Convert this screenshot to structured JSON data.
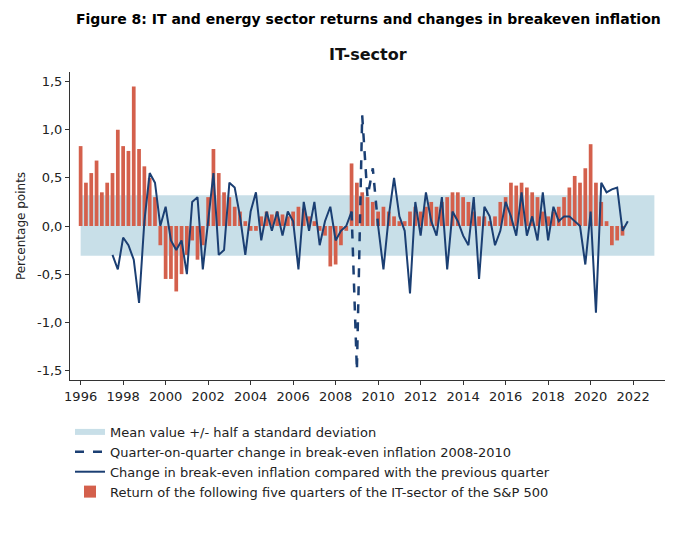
{
  "chart_data": {
    "type": "bar",
    "title": "Figure 8: IT and energy sector returns and changes in breakeven inflation",
    "subtitle": "IT-sector",
    "y_label": "Percentage points",
    "xlim": [
      1995.5,
      2023.5
    ],
    "xticks": [
      1996,
      1998,
      2000,
      2002,
      2004,
      2006,
      2008,
      2010,
      2012,
      2014,
      2016,
      2018,
      2020,
      2022
    ],
    "ylim": [
      -1.6,
      1.6
    ],
    "yticks": [
      {
        "value": -1.5,
        "label": "-1,5"
      },
      {
        "value": -1.0,
        "label": "-1,0"
      },
      {
        "value": -0.5,
        "label": "-0,5"
      },
      {
        "value": 0,
        "label": "0,0"
      },
      {
        "value": 0.5,
        "label": "0,5"
      },
      {
        "value": 1.0,
        "label": "1,0"
      },
      {
        "value": 1.5,
        "label": "1,5"
      }
    ],
    "grid": false,
    "legend": "bottom left",
    "series": [
      {
        "name": "Mean value +/- half a standard deviation",
        "type": "band",
        "color": "#c8dfe8",
        "x": [
          1996,
          2023
        ],
        "lower": -0.31,
        "upper": 0.32
      },
      {
        "name": "Quarter-on-quarter change in break-even inflation 2008-2010",
        "type": "line",
        "line_style": "dashed",
        "color": "#1b3f73",
        "x": [
          2008.75,
          2009,
          2009.25,
          2009.5,
          2009.75,
          2010
        ],
        "values": [
          0.15,
          -1.5,
          1.15,
          0.3,
          0.6,
          0.0
        ]
      },
      {
        "name": "Change in break-even inflation compared with the previous quarter",
        "type": "line",
        "line_style": "solid",
        "color": "#1b3f73",
        "x": [
          1997.5,
          1997.75,
          1998,
          1998.25,
          1998.5,
          1998.75,
          1999,
          1999.25,
          1999.5,
          1999.75,
          2000,
          2000.25,
          2000.5,
          2000.75,
          2001,
          2001.25,
          2001.5,
          2001.75,
          2002,
          2002.25,
          2002.5,
          2002.75,
          2003,
          2003.25,
          2003.5,
          2003.75,
          2004,
          2004.25,
          2004.5,
          2004.75,
          2005,
          2005.25,
          2005.5,
          2005.75,
          2006,
          2006.25,
          2006.5,
          2006.75,
          2007,
          2007.25,
          2007.5,
          2007.75,
          2008,
          2008.25,
          2008.5,
          2008.75,
          2009,
          2009.25,
          2009.5,
          2009.75,
          2010,
          2010.25,
          2010.5,
          2010.75,
          2011,
          2011.25,
          2011.5,
          2011.75,
          2012,
          2012.25,
          2012.5,
          2012.75,
          2013,
          2013.25,
          2013.5,
          2013.75,
          2014,
          2014.25,
          2014.5,
          2014.75,
          2015,
          2015.25,
          2015.5,
          2015.75,
          2016,
          2016.25,
          2016.5,
          2016.75,
          2017,
          2017.25,
          2017.5,
          2017.75,
          2018,
          2018.25,
          2018.5,
          2018.75,
          2019,
          2019.25,
          2019.5,
          2019.75,
          2020,
          2020.25,
          2020.5,
          2020.75,
          2021,
          2021.25,
          2021.5,
          2021.75
        ],
        "values": [
          -0.3,
          -0.45,
          -0.12,
          -0.2,
          -0.35,
          -0.8,
          0.05,
          0.55,
          0.45,
          0.0,
          0.2,
          -0.15,
          -0.25,
          -0.15,
          -0.5,
          0.25,
          0.3,
          -0.45,
          0.05,
          0.55,
          -0.3,
          -0.25,
          0.45,
          0.4,
          0.1,
          -0.3,
          0.15,
          0.35,
          -0.15,
          0.15,
          -0.05,
          0.15,
          -0.1,
          0.15,
          0.05,
          -0.45,
          0.25,
          -0.05,
          0.25,
          -0.2,
          0.05,
          0.2,
          -0.15,
          -0.05,
          0.0,
          0.15,
          null,
          null,
          null,
          null,
          0.0,
          -0.45,
          0.1,
          0.5,
          0.1,
          -0.05,
          -0.7,
          0.25,
          -0.1,
          0.35,
          0.05,
          -0.1,
          0.3,
          -0.45,
          0.15,
          0.05,
          -0.1,
          -0.2,
          0.3,
          -0.55,
          0.2,
          0.1,
          -0.2,
          -0.05,
          0.25,
          0.1,
          -0.1,
          0.35,
          -0.1,
          0.1,
          -0.15,
          0.35,
          -0.15,
          0.2,
          0.05,
          0.1,
          0.1,
          0.05,
          0.0,
          -0.4,
          0.15,
          -0.9,
          0.45,
          0.35,
          0.38,
          0.4,
          -0.05,
          0.05
        ]
      },
      {
        "name": "Return of the following five quarters of the IT-sector of the S&P 500",
        "type": "bar",
        "color": "#d4604c",
        "x": [
          1996,
          1996.25,
          1996.5,
          1996.75,
          1997,
          1997.25,
          1997.5,
          1997.75,
          1998,
          1998.25,
          1998.5,
          1998.75,
          1999,
          1999.25,
          1999.5,
          1999.75,
          2000,
          2000.25,
          2000.5,
          2000.75,
          2001,
          2001.25,
          2001.5,
          2001.75,
          2002,
          2002.25,
          2002.5,
          2002.75,
          2003,
          2003.25,
          2003.5,
          2003.75,
          2004,
          2004.25,
          2004.5,
          2004.75,
          2005,
          2005.25,
          2005.5,
          2005.75,
          2006,
          2006.25,
          2006.5,
          2006.75,
          2007,
          2007.25,
          2007.5,
          2007.75,
          2008,
          2008.25,
          2008.5,
          2008.75,
          2009,
          2009.25,
          2009.5,
          2009.75,
          2010,
          2010.25,
          2010.5,
          2010.75,
          2011,
          2011.25,
          2011.5,
          2011.75,
          2012,
          2012.25,
          2012.5,
          2012.75,
          2013,
          2013.25,
          2013.5,
          2013.75,
          2014,
          2014.25,
          2014.5,
          2014.75,
          2015,
          2015.25,
          2015.5,
          2015.75,
          2016,
          2016.25,
          2016.5,
          2016.75,
          2017,
          2017.25,
          2017.5,
          2017.75,
          2018,
          2018.25,
          2018.5,
          2018.75,
          2019,
          2019.25,
          2019.5,
          2019.75,
          2020,
          2020.25,
          2020.5,
          2020.75,
          2021,
          2021.25,
          2021.5
        ],
        "values": [
          0.83,
          0.45,
          0.55,
          0.68,
          0.35,
          0.45,
          0.55,
          1.0,
          0.83,
          0.78,
          1.45,
          0.8,
          0.62,
          0.5,
          0.3,
          -0.2,
          -0.55,
          -0.55,
          -0.68,
          -0.5,
          -0.3,
          -0.15,
          -0.35,
          -0.2,
          0.3,
          0.8,
          0.55,
          0.35,
          0.3,
          0.2,
          0.15,
          0.05,
          -0.05,
          -0.05,
          0.1,
          0.15,
          0.12,
          0.15,
          0.12,
          0.1,
          0.15,
          0.2,
          0.18,
          0.1,
          0.05,
          -0.05,
          -0.1,
          -0.42,
          -0.4,
          -0.2,
          -0.05,
          0.65,
          0.45,
          0.35,
          0.3,
          0.25,
          0.15,
          0.2,
          0.15,
          0.1,
          0.05,
          0.05,
          0.15,
          0.2,
          0.15,
          0.2,
          0.25,
          0.2,
          0.25,
          0.3,
          0.35,
          0.35,
          0.3,
          0.25,
          0.15,
          0.1,
          0.1,
          0.05,
          0.1,
          0.25,
          0.3,
          0.45,
          0.42,
          0.45,
          0.4,
          0.35,
          0.3,
          0.15,
          0.1,
          0.15,
          0.2,
          0.3,
          0.4,
          0.52,
          0.45,
          0.6,
          0.85,
          0.45,
          0.25,
          0.05,
          -0.2,
          -0.15,
          -0.1
        ]
      }
    ]
  }
}
